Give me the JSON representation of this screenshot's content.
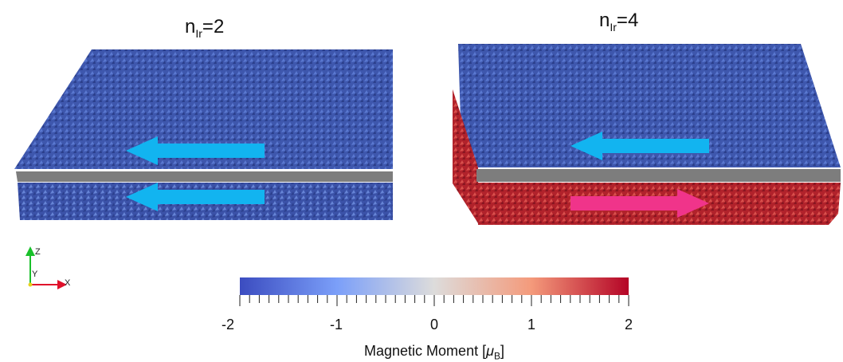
{
  "panels": [
    {
      "title_base": "n",
      "title_sub": "Ir",
      "title_value": "=2",
      "arrows": [
        {
          "direction": "left",
          "color": "#12b4f0"
        },
        {
          "direction": "left",
          "color": "#12b4f0"
        }
      ]
    },
    {
      "title_base": "n",
      "title_sub": "Ir",
      "title_value": "=4",
      "arrows": [
        {
          "direction": "left",
          "color": "#12b4f0"
        },
        {
          "direction": "right",
          "color": "#f0348a"
        }
      ]
    }
  ],
  "colorbar": {
    "title_text": "Magnetic Moment [",
    "title_unit": "μ",
    "title_unit_sub": "B",
    "title_close": "]",
    "min": -2,
    "max": 2,
    "tick_labels": [
      "-2",
      "-1",
      "0",
      "1",
      "2"
    ],
    "colors": {
      "low": "#3b4cc0",
      "mid": "#dddcdb",
      "high": "#b40426"
    }
  },
  "axes_triad": {
    "z": "Z",
    "y": "Y",
    "x": "X"
  },
  "colors": {
    "spacer": "#7d7d7d",
    "blue_layer": "#3d56b0",
    "red_layer": "#b3232c"
  }
}
